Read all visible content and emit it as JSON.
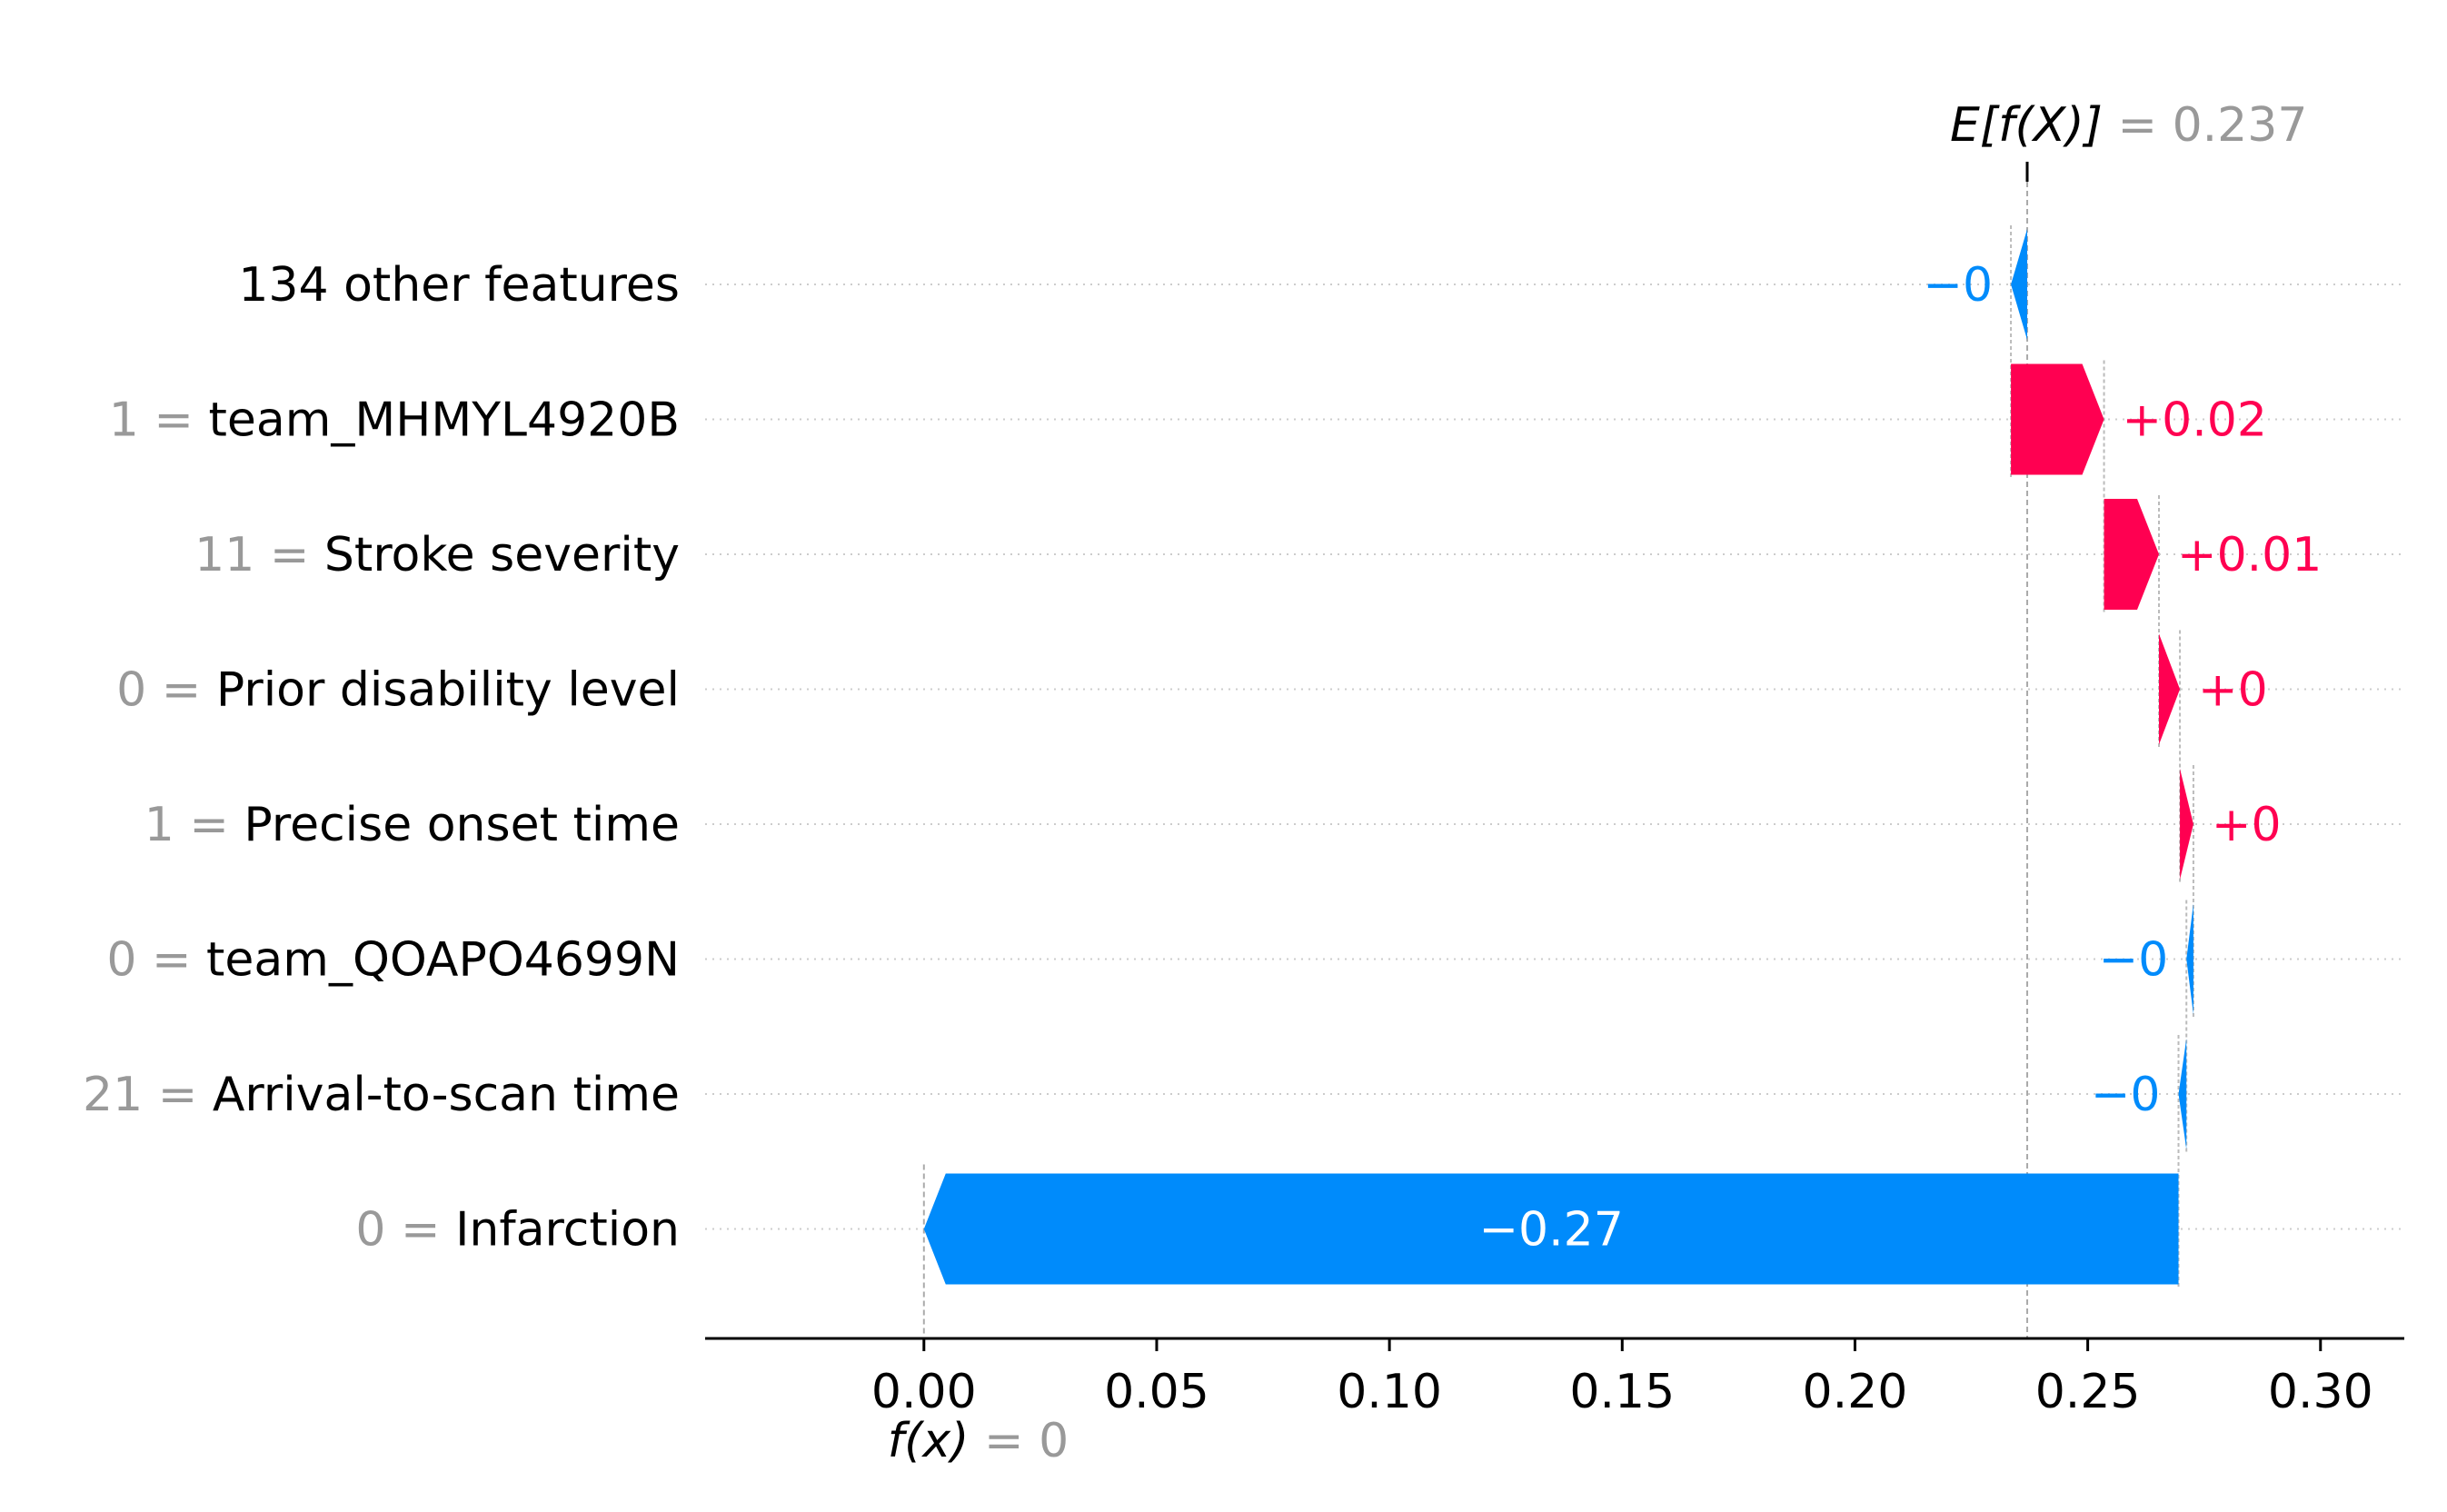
{
  "chart_data": {
    "type": "waterfall",
    "title": "",
    "xlabel": "",
    "ylabel": "",
    "xlim": [
      -0.047,
      0.318
    ],
    "base_value": 0.237,
    "base_label": {
      "prefix": "E[f(X)]",
      "eq": " = ",
      "value": "0.237"
    },
    "final_label": {
      "prefix": "f(x)",
      "eq": " = ",
      "value": "0"
    },
    "x_ticks": [
      0.0,
      0.05,
      0.1,
      0.15,
      0.2,
      0.25,
      0.3
    ],
    "x_tick_labels": [
      "0.00",
      "0.05",
      "0.10",
      "0.15",
      "0.20",
      "0.25",
      "0.30"
    ],
    "features": [
      {
        "value_text": "",
        "name": "134 other features",
        "start": 0.237,
        "end": 0.2335,
        "label": "−0",
        "sign": "neg"
      },
      {
        "value_text": "1 = ",
        "name": "team_MHMYL4920B",
        "start": 0.2335,
        "end": 0.2535,
        "label": "+0.02",
        "sign": "pos"
      },
      {
        "value_text": "11 = ",
        "name": "Stroke severity",
        "start": 0.2535,
        "end": 0.2653,
        "label": "+0.01",
        "sign": "pos"
      },
      {
        "value_text": "0 = ",
        "name": "Prior disability level",
        "start": 0.2653,
        "end": 0.2698,
        "label": "+0",
        "sign": "pos"
      },
      {
        "value_text": "1 = ",
        "name": "Precise onset time",
        "start": 0.2698,
        "end": 0.2727,
        "label": "+0",
        "sign": "pos"
      },
      {
        "value_text": "0 = ",
        "name": "team_QOAPO4699N",
        "start": 0.2727,
        "end": 0.2712,
        "label": "−0",
        "sign": "neg"
      },
      {
        "value_text": "21 = ",
        "name": "Arrival-to-scan time",
        "start": 0.2712,
        "end": 0.2695,
        "label": "−0",
        "sign": "neg"
      },
      {
        "value_text": "0 = ",
        "name": "Infarction",
        "start": 0.2695,
        "end": 0.0,
        "label": "−0.27",
        "sign": "neg"
      }
    ],
    "colors": {
      "positive": "#ff0051",
      "negative": "#008bfb",
      "gray": "#999999",
      "text": "#000000",
      "axis": "#000000"
    }
  }
}
